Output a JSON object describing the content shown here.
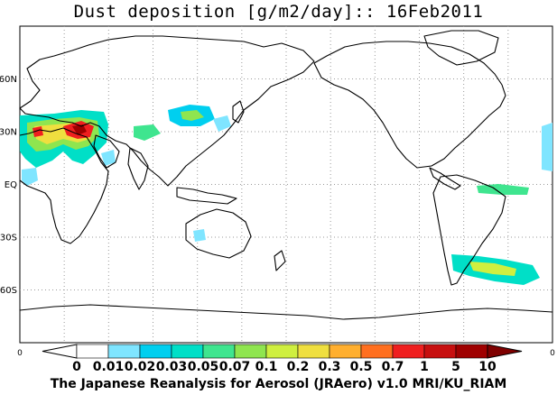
{
  "title": "Dust deposition [g/m2/day]:: 16Feb2011",
  "credit": "The Japanese Reanalysis for Aerosol (JRAero) v1.0 MRI/KU_RIAM",
  "lat_labels": [
    {
      "text": "60N",
      "lat": 60
    },
    {
      "text": "30N",
      "lat": 30
    },
    {
      "text": "EQ",
      "lat": 0
    },
    {
      "text": "30S",
      "lat": -30
    },
    {
      "text": "60S",
      "lat": -60
    }
  ],
  "edge_labels": {
    "left": "0",
    "right": "0"
  },
  "colorbar": {
    "levels": [
      "0",
      "0.01",
      "0.02",
      "0.03",
      "0.05",
      "0.07",
      "0.1",
      "0.2",
      "0.3",
      "0.5",
      "0.7",
      "1",
      "5",
      "10"
    ],
    "colors": [
      "#ffffff",
      "#ffffff",
      "#7fe5ff",
      "#00cfef",
      "#00dfc7",
      "#3fe58f",
      "#8fe54f",
      "#cfef3f",
      "#efdf3f",
      "#ffaf2f",
      "#ff6f1f",
      "#ef1f1f",
      "#c70f0f",
      "#9f0000",
      "#7f0000"
    ]
  },
  "colors": {
    "land_outline": "#000000",
    "grid": "#9a9a9a",
    "frame": "#000000"
  }
}
